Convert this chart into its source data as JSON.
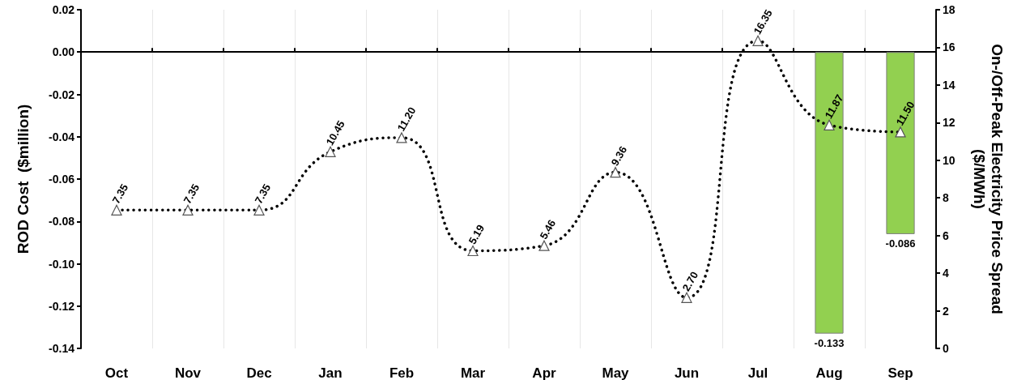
{
  "chart_data": {
    "type": "bar",
    "ylabel": "ROD Cost  ($million)",
    "y2label": "On-/Off-Peak Electricity Price Spread\n($/MWh)",
    "categories": [
      "Oct",
      "Nov",
      "Dec",
      "Jan",
      "Feb",
      "Mar",
      "Apr",
      "May",
      "Jun",
      "Jul",
      "Aug",
      "Sep"
    ],
    "series": [
      {
        "type": "bar",
        "color": "#92d050",
        "values": [
          0,
          0,
          0,
          0,
          0,
          0,
          0,
          0,
          0,
          0,
          -0.133,
          -0.086
        ],
        "value_labels": [
          null,
          null,
          null,
          null,
          null,
          null,
          null,
          null,
          null,
          null,
          "-0.133",
          "-0.086"
        ]
      },
      {
        "type": "line",
        "axis": "y2",
        "color": "#000000",
        "marker": "triangle",
        "line_style": "dotted",
        "values": [
          7.35,
          7.35,
          7.35,
          10.45,
          11.2,
          5.19,
          5.46,
          9.36,
          2.7,
          16.35,
          11.87,
          11.5
        ],
        "value_labels": [
          "7.35",
          "7.35",
          "7.35",
          "10.45",
          "11.20",
          "5.19",
          "5.46",
          "9.36",
          "2.70",
          "16.35",
          "11.87",
          "11.50"
        ]
      }
    ],
    "ylim": [
      -0.14,
      0.02
    ],
    "yticks": [
      {
        "value": 0.02,
        "label": "0.02"
      },
      {
        "value": 0,
        "label": "0.00"
      },
      {
        "value": -0.02,
        "label": "-0.02"
      },
      {
        "value": -0.04,
        "label": "-0.04"
      },
      {
        "value": -0.06,
        "label": "-0.06"
      },
      {
        "value": -0.08,
        "label": "-0.08"
      },
      {
        "value": -0.1,
        "label": "-0.10"
      },
      {
        "value": -0.12,
        "label": "-0.12"
      },
      {
        "value": -0.14,
        "label": "-0.14"
      }
    ],
    "y2lim": [
      0,
      18
    ],
    "y2ticks": [
      0,
      2,
      4,
      6,
      8,
      10,
      12,
      14,
      16,
      18
    ],
    "grid": "x"
  }
}
